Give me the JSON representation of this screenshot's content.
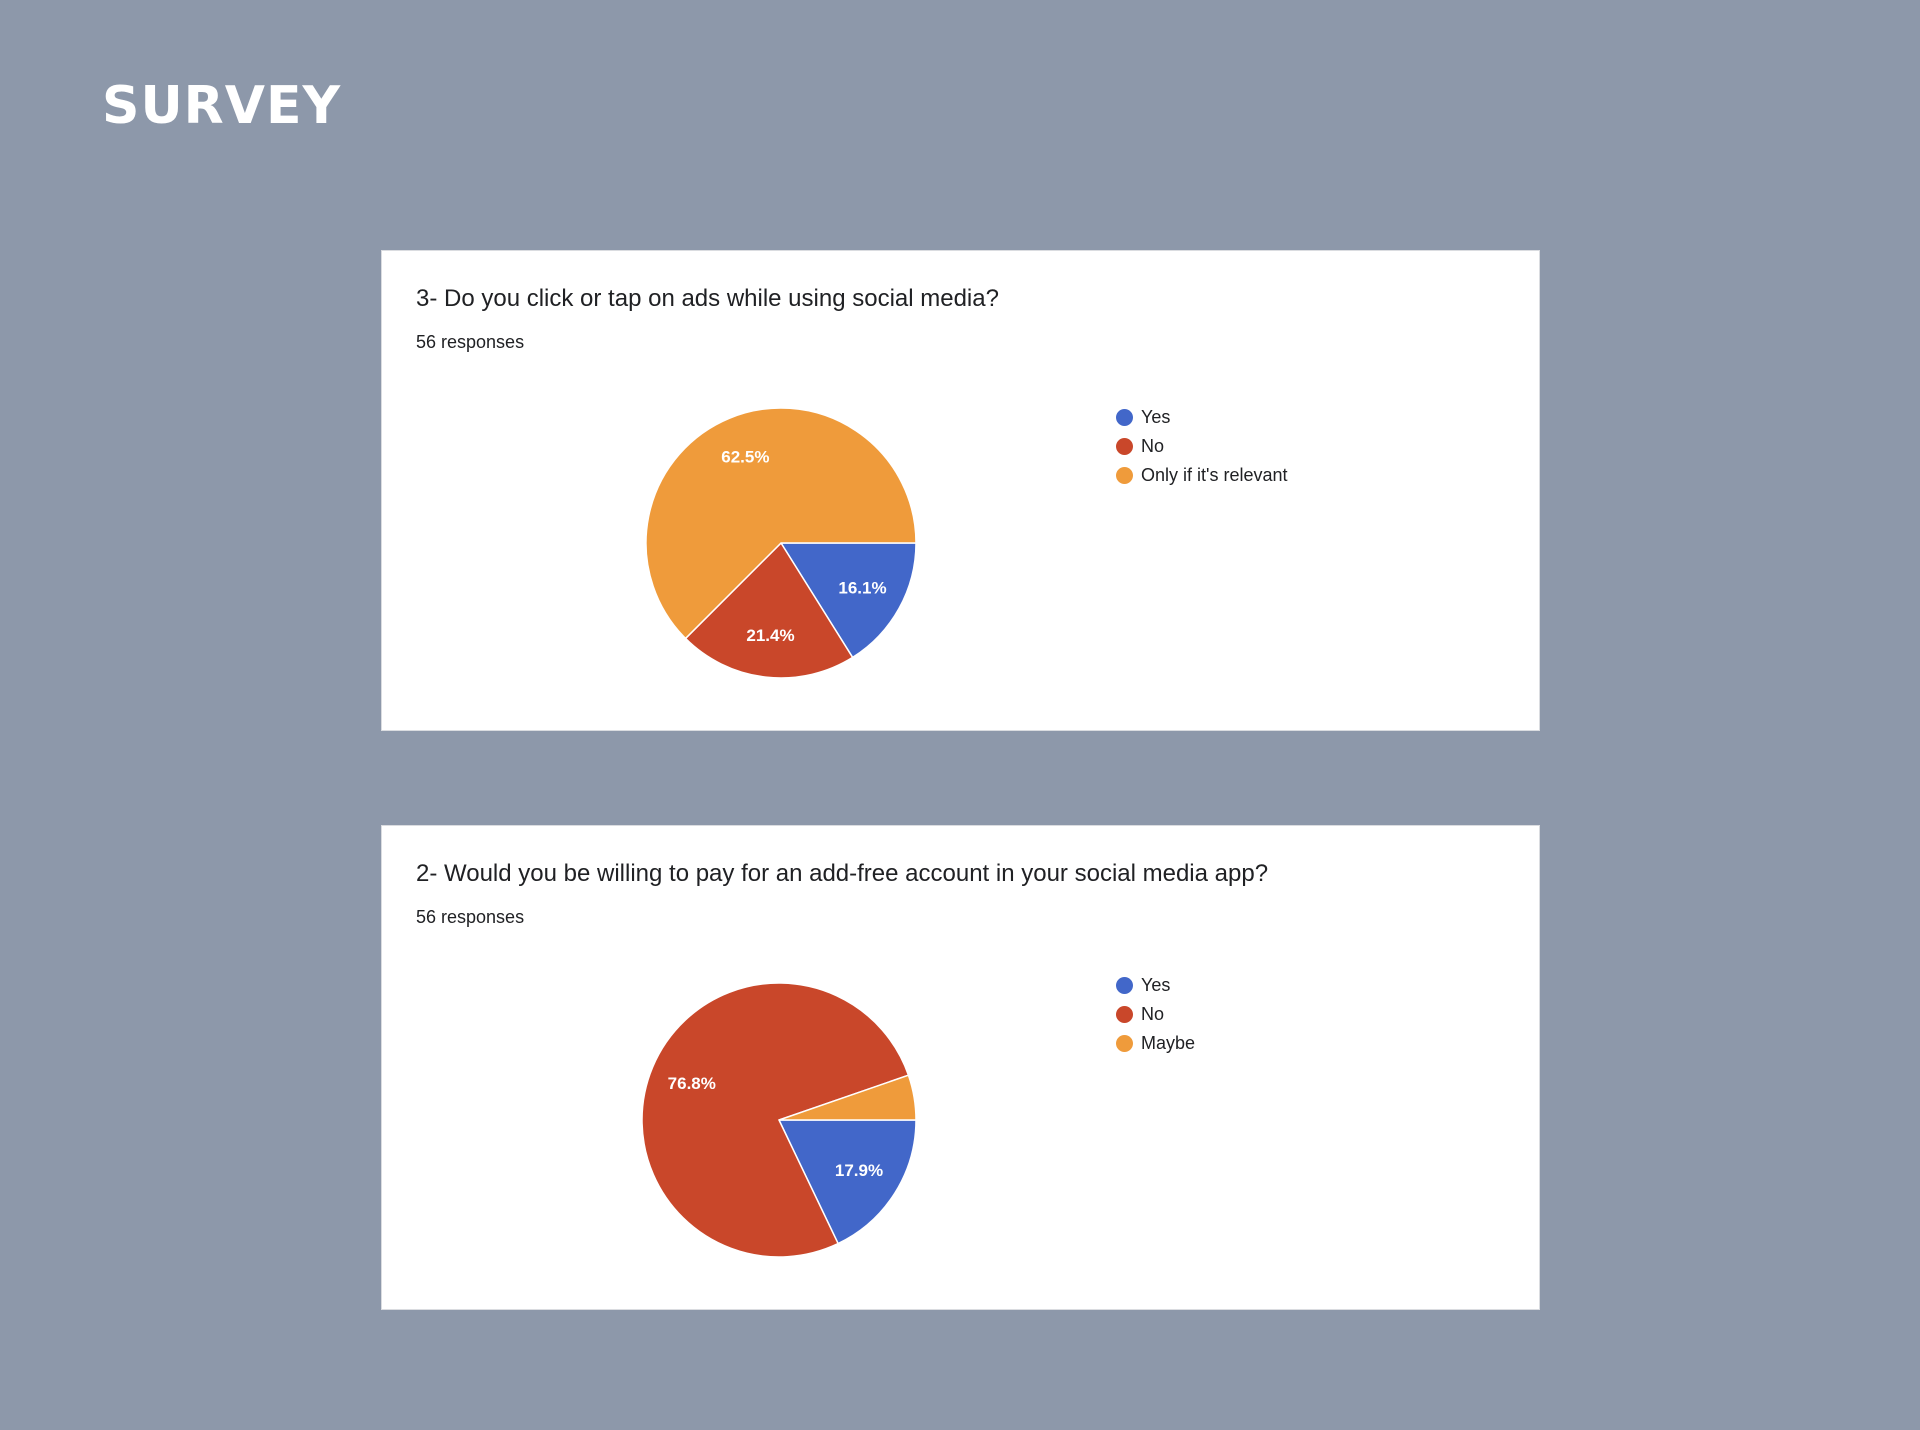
{
  "page": {
    "title": "SURVEY"
  },
  "chart_data": [
    {
      "type": "pie",
      "title": "3- Do you click or tap on ads while using social media?",
      "subtitle": "56 responses",
      "categories": [
        "Yes",
        "No",
        "Only if it's relevant"
      ],
      "values": [
        16.1,
        21.4,
        62.5
      ],
      "labels": [
        "16.1%",
        "21.4%",
        "62.5%"
      ],
      "colors": [
        "#4267c9",
        "#c9472a",
        "#ef9b3b"
      ],
      "legend": "right"
    },
    {
      "type": "pie",
      "title": "2- Would you be willing to pay for an add-free account in your social media app?",
      "subtitle": "56 responses",
      "categories": [
        "Yes",
        "No",
        "Maybe"
      ],
      "values": [
        17.9,
        76.8,
        5.3
      ],
      "labels": [
        "17.9%",
        "76.8%",
        ""
      ],
      "colors": [
        "#4267c9",
        "#c9472a",
        "#ef9b3b"
      ],
      "legend": "right"
    }
  ]
}
